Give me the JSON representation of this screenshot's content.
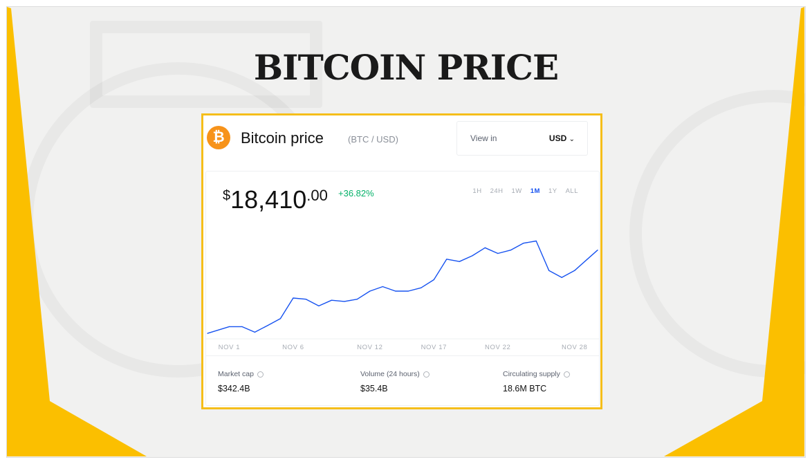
{
  "slide": {
    "title": "BITCOIN PRICE",
    "accent_color": "#fbbf00",
    "card_border_color": "#f5be1a"
  },
  "header": {
    "icon": "bitcoin-logo-icon",
    "logo_letter": "₿",
    "title": "Bitcoin price",
    "pair": "(BTC / USD)",
    "view_in_label": "View in",
    "currency": "USD",
    "dropdown_icon": "chevron-down-icon"
  },
  "price": {
    "symbol": "$",
    "whole": "18,410",
    "cents": ".00",
    "change": "+36.82%",
    "change_color": "#05b169"
  },
  "ranges": [
    {
      "label": "1H",
      "active": false
    },
    {
      "label": "24H",
      "active": false
    },
    {
      "label": "1W",
      "active": false
    },
    {
      "label": "1M",
      "active": true
    },
    {
      "label": "1Y",
      "active": false
    },
    {
      "label": "ALL",
      "active": false
    }
  ],
  "stats": [
    {
      "label": "Market cap",
      "value": "$342.4B"
    },
    {
      "label": "Volume (24 hours)",
      "value": "$35.4B"
    },
    {
      "label": "Circulating supply",
      "value": "18.6M BTC"
    }
  ],
  "chart_data": {
    "type": "line",
    "title": "",
    "xlabel": "",
    "ylabel": "",
    "line_color": "#1652f0",
    "grid": false,
    "y_axis_visible": false,
    "x_tick_labels": [
      "NOV 1",
      "NOV 6",
      "NOV 12",
      "NOV 17",
      "NOV 22",
      "NOV 28"
    ],
    "x_tick_days": [
      1,
      6,
      12,
      17,
      22,
      28
    ],
    "series": [
      {
        "x": [
          "Oct 31",
          "Nov 1",
          "Nov 2",
          "Nov 3",
          "Nov 4",
          "Nov 5",
          "Nov 6",
          "Nov 7",
          "Nov 8",
          "Nov 9",
          "Nov 10",
          "Nov 11",
          "Nov 12",
          "Nov 13",
          "Nov 14",
          "Nov 15",
          "Nov 16",
          "Nov 17",
          "Nov 18",
          "Nov 19",
          "Nov 20",
          "Nov 21",
          "Nov 22",
          "Nov 23",
          "Nov 24",
          "Nov 25",
          "Nov 26",
          "Nov 27",
          "Nov 28",
          "Nov 29",
          "Nov 30"
        ],
        "values": [
          13460,
          13860,
          13860,
          13530,
          13930,
          14340,
          15560,
          15490,
          15090,
          15430,
          15360,
          15490,
          15970,
          16240,
          15970,
          15970,
          16170,
          16650,
          17870,
          17730,
          18070,
          18550,
          18210,
          18410,
          18820,
          18950,
          17190,
          16780,
          17190,
          17870,
          18410
        ]
      }
    ]
  }
}
